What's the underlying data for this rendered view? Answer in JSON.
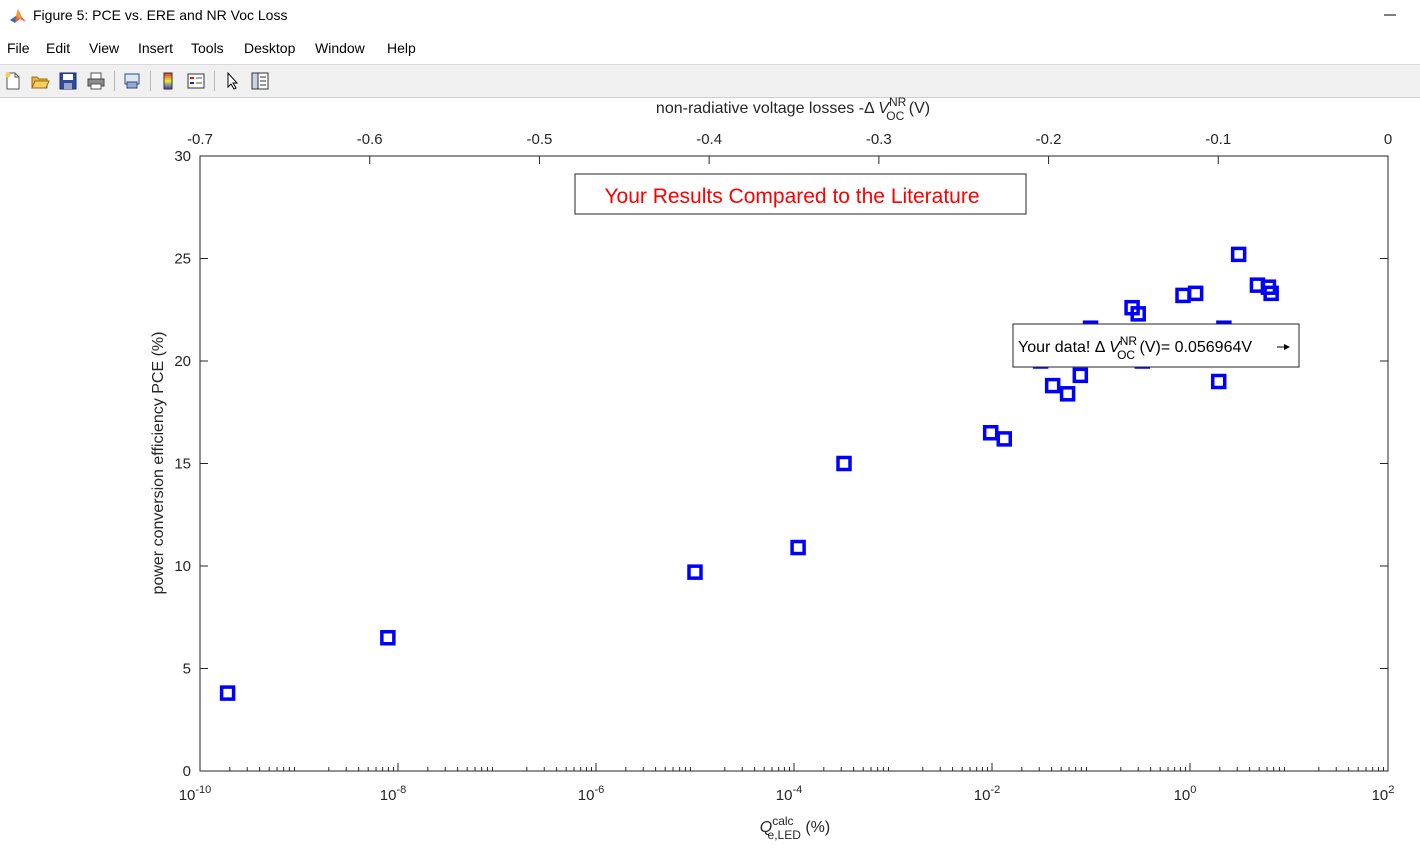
{
  "window": {
    "title": "Figure 5: PCE vs. ERE and NR Voc Loss",
    "minimize_glyph": "—"
  },
  "menu": [
    "File",
    "Edit",
    "View",
    "Insert",
    "Tools",
    "Desktop",
    "Window",
    "Help"
  ],
  "toolbar_icons": [
    "new-figure-icon",
    "open-file-icon",
    "save-icon",
    "print-icon",
    "print-preview-icon",
    "colorbar-icon",
    "legend-icon",
    "select-arrow-icon",
    "property-editor-icon"
  ],
  "chart_data": {
    "type": "scatter",
    "title": "Your Results Compared to the Literature",
    "title_color": "#ff0000",
    "xlabel": {
      "base": "Q",
      "sup": "calc",
      "sub": "e,LED",
      "unit": " (%)"
    },
    "x2label": {
      "prefix": "non-radiative voltage losses -Δ ",
      "base": "V",
      "sup": "NR",
      "sub": "OC",
      "unit": " (V)"
    },
    "ylabel": "power conversion efficiency PCE (%)",
    "xscale": "log",
    "xlim": [
      1e-10,
      100
    ],
    "ylim": [
      0,
      30
    ],
    "x2lim": [
      -0.7,
      0
    ],
    "x_tick_labels": [
      {
        "base": "10",
        "exp": "-10",
        "value": 1e-10
      },
      {
        "base": "10",
        "exp": "-8",
        "value": 1e-08
      },
      {
        "base": "10",
        "exp": "-6",
        "value": 1e-06
      },
      {
        "base": "10",
        "exp": "-4",
        "value": 0.0001
      },
      {
        "base": "10",
        "exp": "-2",
        "value": 0.01
      },
      {
        "base": "10",
        "exp": "0",
        "value": 1
      },
      {
        "base": "10",
        "exp": "2",
        "value": 100
      }
    ],
    "y_ticks": [
      0,
      5,
      10,
      15,
      20,
      25,
      30
    ],
    "y_tick_labels": [
      "0",
      "5",
      "10",
      "15",
      "20",
      "25",
      "30"
    ],
    "x2_ticks": [
      -0.7,
      -0.6,
      -0.5,
      -0.4,
      -0.3,
      -0.2,
      -0.1,
      0
    ],
    "x2_tick_labels": [
      "-0.7",
      "-0.6",
      "-0.5",
      "-0.4",
      "-0.3",
      "-0.2",
      "-0.1",
      "0"
    ],
    "grid": false,
    "series": [
      {
        "marker": "square",
        "color": "#0000ff",
        "x": [
          1.9e-10,
          7.9e-09,
          1e-05,
          0.00011,
          0.00032,
          0.0097,
          0.0133,
          0.031,
          0.041,
          0.058,
          0.078,
          0.099,
          0.26,
          0.3,
          0.33,
          0.85,
          1.14,
          1.95,
          2.2,
          3.1,
          4.8,
          6.2,
          6.6
        ],
        "y": [
          3.8,
          6.5,
          9.7,
          10.9,
          15.0,
          16.5,
          16.2,
          20.0,
          18.8,
          18.4,
          19.3,
          21.6,
          22.6,
          22.3,
          20.0,
          23.2,
          23.3,
          19.0,
          21.6,
          25.2,
          23.7,
          23.6,
          23.3
        ]
      },
      {
        "marker": "circle",
        "color": "#ff0000",
        "x": [
          10.0
        ],
        "y": [
          20.7
        ]
      }
    ],
    "annotation": {
      "prefix": "Your data! Δ ",
      "base": "V",
      "sup": "NR",
      "sub": "OC",
      "suffix": " (V)= 0.056964V",
      "arrow": true
    }
  }
}
